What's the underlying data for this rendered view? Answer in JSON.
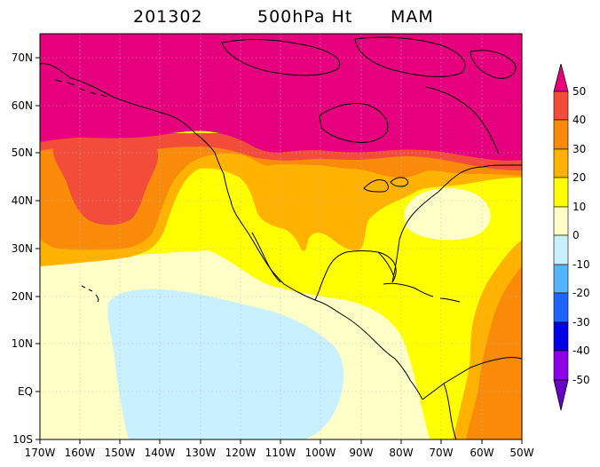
{
  "title": {
    "date": "201302",
    "field": "500hPa Ht",
    "season": "MAM"
  },
  "axes": {
    "x_ticks": [
      "170W",
      "160W",
      "150W",
      "140W",
      "130W",
      "120W",
      "110W",
      "100W",
      "90W",
      "80W",
      "70W",
      "60W",
      "50W"
    ],
    "y_ticks": [
      "10S",
      "EQ",
      "10N",
      "20N",
      "30N",
      "40N",
      "50N",
      "60N",
      "70N"
    ],
    "lon_range": [
      -170,
      -50
    ],
    "lat_range": [
      -10,
      75
    ]
  },
  "colorbar": {
    "labels": [
      "50",
      "40",
      "30",
      "20",
      "10",
      "0",
      "-10",
      "-20",
      "-30",
      "-40",
      "-50"
    ],
    "colors": [
      "#e8007e",
      "#f24c3a",
      "#f98a0a",
      "#ffb300",
      "#ffff00",
      "#ffffc8",
      "#c8f0ff",
      "#55b4ff",
      "#1e64ff",
      "#0000e6",
      "#8c00e6",
      "#6a00c8"
    ]
  },
  "palette": {
    "magenta": "#e6007e",
    "red": "#f24c3a",
    "orange": "#f98a0a",
    "amber": "#ffb300",
    "yellow": "#ffff00",
    "cream": "#ffffc8",
    "lightblue": "#c8f0ff"
  }
}
